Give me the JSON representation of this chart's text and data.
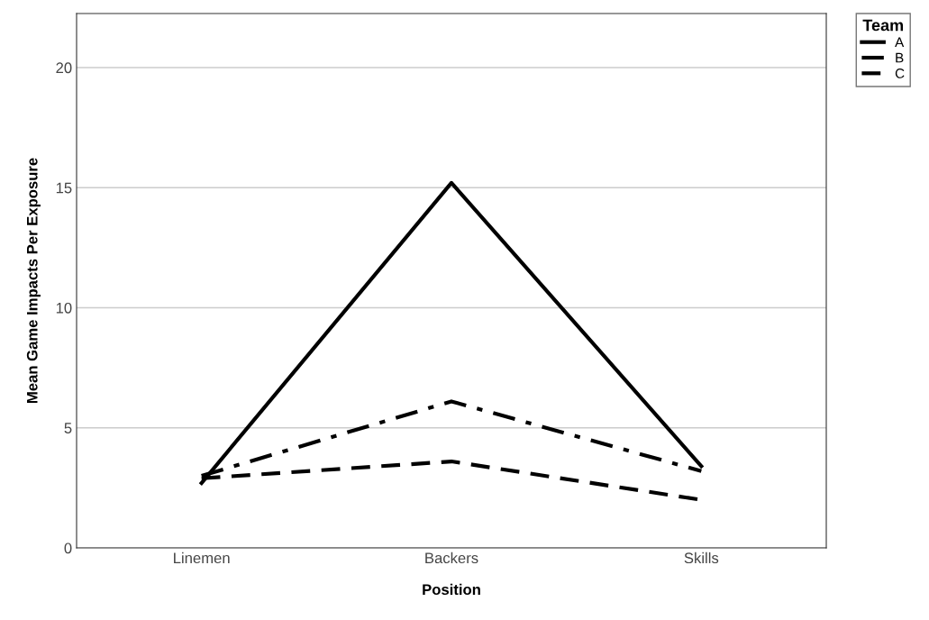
{
  "chart_data": {
    "type": "line",
    "xlabel": "Position",
    "ylabel": "Mean Game Impacts Per Exposure",
    "legend_title": "Team",
    "legend": "top right",
    "grid": "y",
    "categories": [
      "Linemen",
      "Backers",
      "Skills"
    ],
    "ylim": [
      0,
      22.25
    ],
    "yticks": [
      0,
      5,
      10,
      15,
      20
    ],
    "marker": "none",
    "series": [
      {
        "name": "A",
        "color": "#000000",
        "line_style": "solid",
        "values": [
          2.7,
          15.2,
          3.4
        ]
      },
      {
        "name": "B",
        "color": "#000000",
        "line_style": "dashdot",
        "values": [
          3.0,
          6.1,
          3.2
        ]
      },
      {
        "name": "C",
        "color": "#000000",
        "line_style": "dashed",
        "values": [
          2.9,
          3.6,
          2.0
        ]
      }
    ]
  }
}
